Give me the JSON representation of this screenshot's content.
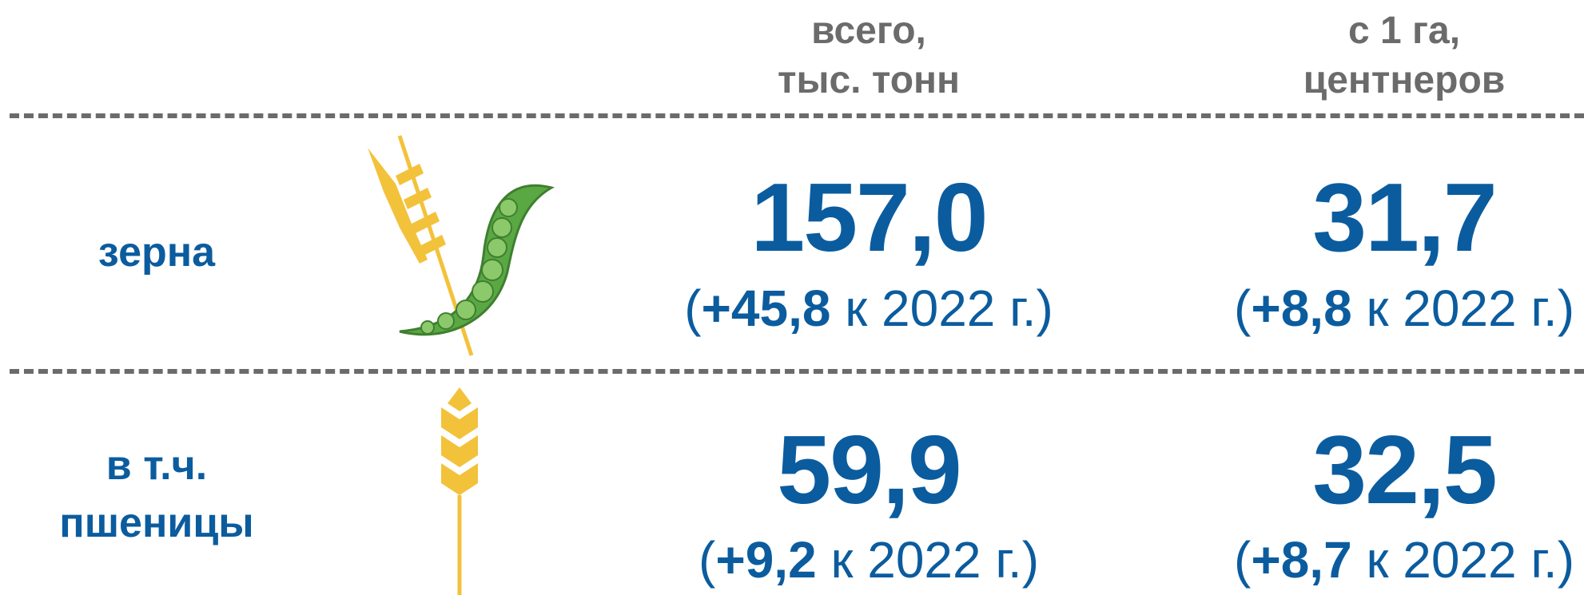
{
  "header": {
    "columns": [
      [
        "всего,",
        "тыс. тонн"
      ],
      [
        "с 1 га,",
        "центнеров"
      ]
    ]
  },
  "rows": [
    {
      "label": [
        "зерна"
      ],
      "cells": [
        {
          "value": "157,0",
          "open": "(",
          "delta": "+45,8",
          "rest": " к 2022 г.)"
        },
        {
          "value": "31,7",
          "open": "(",
          "delta": "+8,8",
          "rest": " к 2022 г.)"
        }
      ]
    },
    {
      "label": [
        "в т.ч.",
        "пшеницы"
      ],
      "cells": [
        {
          "value": "59,9",
          "open": "(",
          "delta": "+9,2",
          "rest": " к 2022 г.)"
        },
        {
          "value": "32,5",
          "open": "(",
          "delta": "+8,7",
          "rest": " к 2022 г.)"
        }
      ]
    }
  ]
}
